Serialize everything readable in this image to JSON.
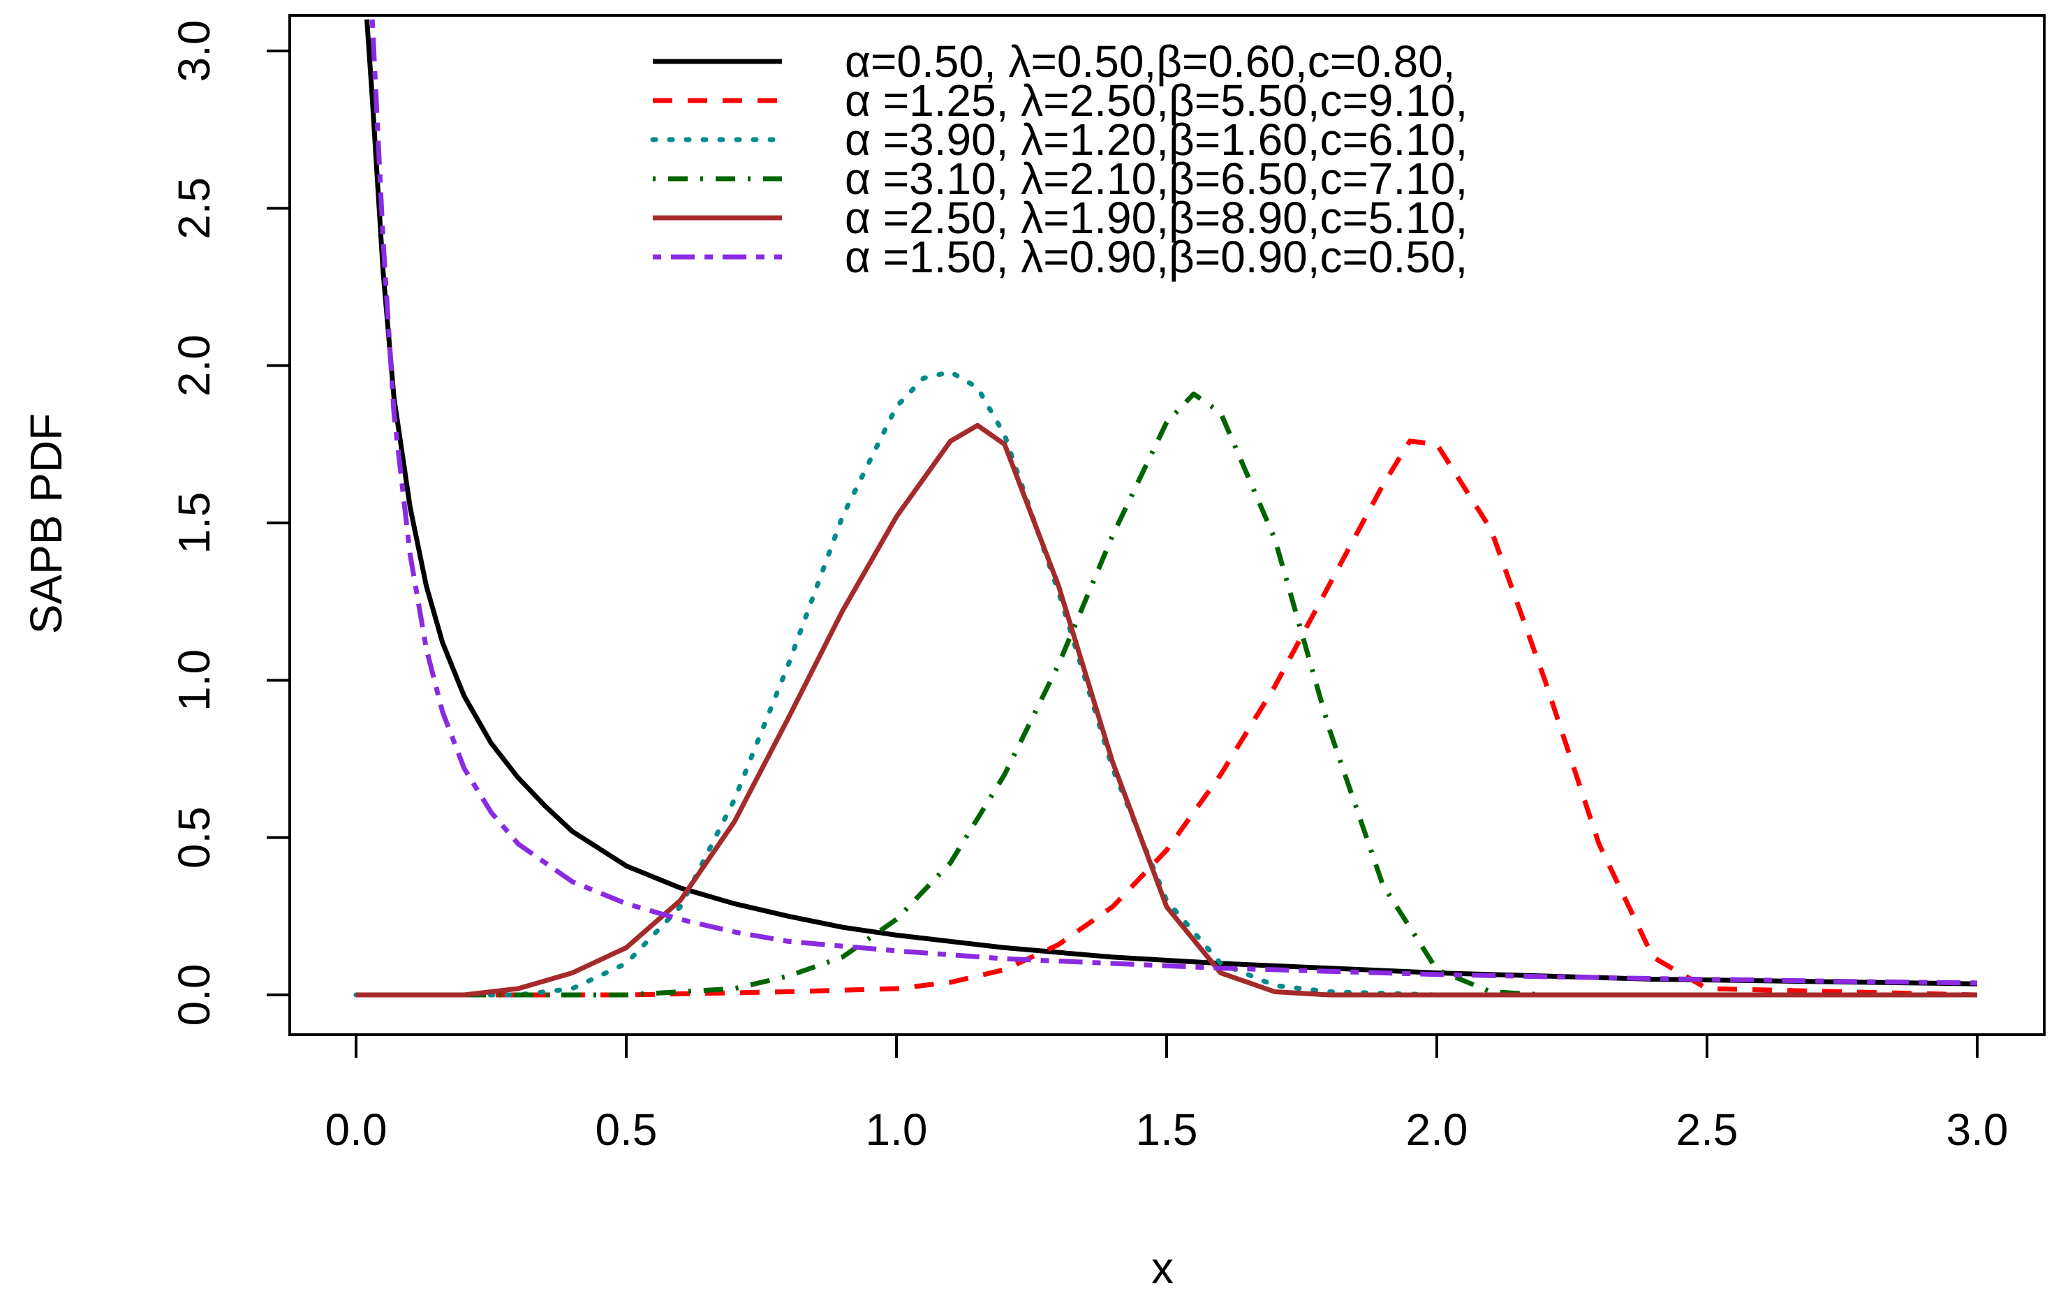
{
  "chart_data": {
    "type": "line",
    "title": "",
    "xlabel": "x",
    "ylabel": "SAPB PDF",
    "xlim": [
      0,
      3
    ],
    "ylim": [
      0,
      3
    ],
    "x_ticks": [
      "0.0",
      "0.5",
      "1.0",
      "1.5",
      "2.0",
      "2.5",
      "3.0"
    ],
    "y_ticks": [
      "0.0",
      "0.5",
      "1.0",
      "1.5",
      "2.0",
      "2.5",
      "3.0"
    ],
    "legend_position": "top",
    "series": [
      {
        "name": "α=0.50, λ=0.50,β=0.60,c=0.80,",
        "color": "#000000",
        "style": "solid",
        "x": [
          0.02,
          0.03,
          0.05,
          0.07,
          0.1,
          0.13,
          0.16,
          0.2,
          0.25,
          0.3,
          0.35,
          0.4,
          0.5,
          0.6,
          0.7,
          0.8,
          0.9,
          1.0,
          1.2,
          1.4,
          1.6,
          1.8,
          2.0,
          2.2,
          2.4,
          2.6,
          2.8,
          3.0
        ],
        "y": [
          3.1,
          2.85,
          2.3,
          1.9,
          1.55,
          1.3,
          1.12,
          0.95,
          0.8,
          0.69,
          0.6,
          0.52,
          0.41,
          0.34,
          0.29,
          0.25,
          0.215,
          0.19,
          0.15,
          0.12,
          0.1,
          0.085,
          0.07,
          0.06,
          0.05,
          0.045,
          0.04,
          0.035
        ]
      },
      {
        "name": "α =1.25, λ=2.50,β=5.50,c=9.10,",
        "color": "#ff0000",
        "style": "dashed",
        "x": [
          0.0,
          0.5,
          0.8,
          1.0,
          1.1,
          1.2,
          1.3,
          1.4,
          1.5,
          1.6,
          1.7,
          1.8,
          1.9,
          1.95,
          2.0,
          2.1,
          2.2,
          2.3,
          2.4,
          2.5,
          3.0
        ],
        "y": [
          0.0,
          0.0,
          0.01,
          0.02,
          0.04,
          0.08,
          0.16,
          0.28,
          0.46,
          0.7,
          0.98,
          1.3,
          1.62,
          1.76,
          1.75,
          1.48,
          1.0,
          0.48,
          0.12,
          0.02,
          0.0
        ]
      },
      {
        "name": "α =3.90, λ=1.20,β=1.60,c=6.10,",
        "color": "#008b8b",
        "style": "dotted",
        "x": [
          0.0,
          0.3,
          0.4,
          0.5,
          0.6,
          0.7,
          0.8,
          0.9,
          1.0,
          1.05,
          1.1,
          1.15,
          1.2,
          1.3,
          1.4,
          1.5,
          1.6,
          1.7,
          1.8,
          2.0,
          3.0
        ],
        "y": [
          0.0,
          0.0,
          0.02,
          0.1,
          0.28,
          0.62,
          1.05,
          1.52,
          1.87,
          1.96,
          1.98,
          1.93,
          1.78,
          1.28,
          0.72,
          0.3,
          0.1,
          0.03,
          0.01,
          0.0,
          0.0
        ]
      },
      {
        "name": "α =3.10, λ=2.10,β=6.50,c=7.10,",
        "color": "#006400",
        "style": "dotdash",
        "x": [
          0.0,
          0.5,
          0.7,
          0.8,
          0.9,
          1.0,
          1.1,
          1.2,
          1.3,
          1.4,
          1.5,
          1.55,
          1.6,
          1.7,
          1.8,
          1.9,
          2.0,
          2.1,
          2.2,
          3.0
        ],
        "y": [
          0.0,
          0.0,
          0.02,
          0.06,
          0.12,
          0.24,
          0.42,
          0.7,
          1.05,
          1.46,
          1.82,
          1.91,
          1.85,
          1.45,
          0.85,
          0.35,
          0.08,
          0.01,
          0.0,
          0.0
        ]
      },
      {
        "name": "α =2.50, λ=1.90,β=8.90,c=5.10,",
        "color": "#a52a2a",
        "style": "longdash",
        "x": [
          0.0,
          0.2,
          0.3,
          0.4,
          0.5,
          0.6,
          0.7,
          0.8,
          0.9,
          1.0,
          1.1,
          1.15,
          1.2,
          1.3,
          1.4,
          1.5,
          1.6,
          1.7,
          1.8,
          2.0,
          3.0
        ],
        "y": [
          0.0,
          0.0,
          0.02,
          0.07,
          0.15,
          0.3,
          0.55,
          0.88,
          1.22,
          1.52,
          1.76,
          1.81,
          1.75,
          1.3,
          0.74,
          0.28,
          0.07,
          0.01,
          0.0,
          0.0,
          0.0
        ]
      },
      {
        "name": "α =1.50, λ=0.90,β=0.90,c=0.50,",
        "color": "#8a2be2",
        "style": "twodash",
        "x": [
          0.03,
          0.05,
          0.07,
          0.1,
          0.13,
          0.16,
          0.2,
          0.25,
          0.3,
          0.4,
          0.5,
          0.6,
          0.7,
          0.8,
          1.0,
          1.2,
          1.4,
          1.6,
          1.8,
          2.0,
          2.2,
          2.4,
          2.6,
          2.8,
          3.0
        ],
        "y": [
          3.1,
          2.4,
          1.85,
          1.4,
          1.1,
          0.9,
          0.72,
          0.58,
          0.48,
          0.36,
          0.29,
          0.24,
          0.2,
          0.17,
          0.14,
          0.115,
          0.1,
          0.085,
          0.075,
          0.065,
          0.058,
          0.052,
          0.047,
          0.042,
          0.038
        ]
      }
    ]
  }
}
